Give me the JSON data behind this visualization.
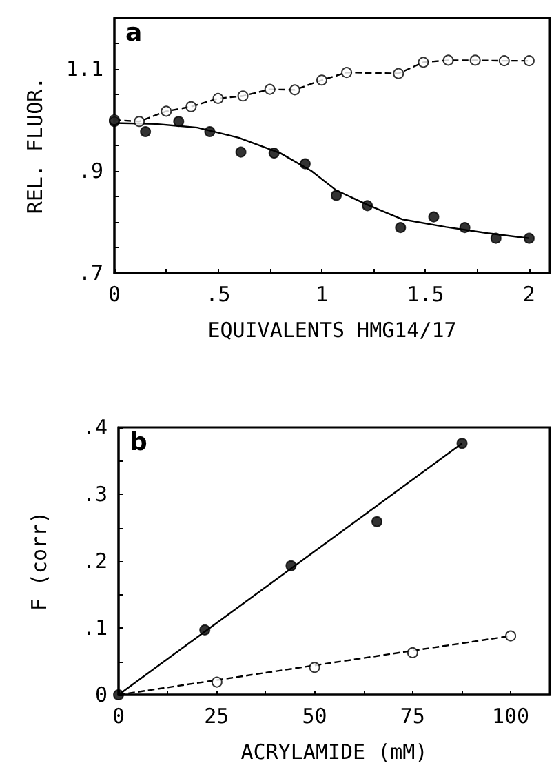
{
  "chart_data": [
    {
      "type": "scatter",
      "annotations": [
        "a"
      ],
      "xlabel": "EQUIVALENTS HMG14/17",
      "ylabel": "REL. FLUOR.",
      "xlim": [
        0,
        2.1
      ],
      "ylim": [
        0.7,
        1.2
      ],
      "xticks": [
        0,
        {
          "value": 0.25,
          "label": null
        },
        {
          "value": 0.5,
          "label": ".5"
        },
        {
          "value": 0.75,
          "label": null
        },
        1,
        {
          "value": 1.25,
          "label": null
        },
        1.5,
        {
          "value": 1.75,
          "label": null
        },
        2
      ],
      "yticks": [
        {
          "value": 0.7,
          "label": ".7"
        },
        {
          "value": 0.75,
          "label": null
        },
        {
          "value": 0.8,
          "label": null
        },
        {
          "value": 0.85,
          "label": null
        },
        {
          "value": 0.9,
          "label": ".9"
        },
        {
          "value": 0.95,
          "label": null
        },
        {
          "value": 1.0,
          "label": null
        },
        {
          "value": 1.05,
          "label": null
        },
        1.1,
        {
          "value": 1.15,
          "label": null
        }
      ],
      "grid": false,
      "series": [
        {
          "marker": "circle",
          "color": "#ffffff",
          "x": [
            0,
            0.12,
            0.25,
            0.37,
            0.5,
            0.62,
            0.75,
            0.87,
            1.0,
            1.12,
            1.37,
            1.49,
            1.61,
            1.74,
            1.88,
            2.0
          ],
          "values": [
            1.0,
            0.997,
            1.017,
            1.026,
            1.042,
            1.047,
            1.06,
            1.059,
            1.078,
            1.093,
            1.091,
            1.113,
            1.117,
            1.117,
            1.116,
            1.116
          ]
        },
        {
          "type": "line",
          "marker": "none",
          "line_style": "dashed",
          "color": "#000000",
          "x": [
            0,
            0.12,
            0.25,
            0.37,
            0.5,
            0.62,
            0.75,
            0.87,
            1.0,
            1.12,
            1.37,
            1.49,
            1.61,
            1.74,
            1.88,
            2.0
          ],
          "values": [
            1.0,
            0.997,
            1.017,
            1.026,
            1.042,
            1.047,
            1.06,
            1.059,
            1.078,
            1.093,
            1.091,
            1.113,
            1.117,
            1.117,
            1.116,
            1.116
          ]
        },
        {
          "marker": "circle",
          "color": "#000000",
          "x": [
            0,
            0.15,
            0.31,
            0.46,
            0.61,
            0.77,
            0.92,
            1.07,
            1.22,
            1.38,
            1.54,
            1.69,
            1.84,
            2.0
          ],
          "values": [
            0.997,
            0.977,
            0.997,
            0.977,
            0.937,
            0.935,
            0.914,
            0.852,
            0.832,
            0.789,
            0.81,
            0.789,
            0.768,
            0.768
          ]
        },
        {
          "type": "line",
          "marker": "none",
          "line_style": "solid",
          "color": "#000000",
          "x": [
            0,
            0.2,
            0.4,
            0.6,
            0.8,
            0.95,
            1.07,
            1.23,
            1.39,
            1.6,
            1.8,
            2.0
          ],
          "values": [
            0.994,
            0.992,
            0.985,
            0.965,
            0.935,
            0.9,
            0.862,
            0.832,
            0.805,
            0.79,
            0.778,
            0.768
          ]
        }
      ]
    },
    {
      "type": "scatter",
      "annotations": [
        "b"
      ],
      "xlabel": "ACRYLAMIDE (mM)",
      "ylabel": "F (corr)",
      "xlim": [
        0,
        110
      ],
      "ylim": [
        0,
        0.4
      ],
      "xticks": [
        0,
        {
          "value": 12.5,
          "label": null
        },
        25,
        {
          "value": 37.5,
          "label": null
        },
        50,
        {
          "value": 62.5,
          "label": null
        },
        75,
        {
          "value": 87.5,
          "label": null
        },
        100
      ],
      "yticks": [
        0,
        {
          "value": 0.05,
          "label": null
        },
        {
          "value": 0.1,
          "label": ".1"
        },
        {
          "value": 0.15,
          "label": null
        },
        {
          "value": 0.2,
          "label": ".2"
        },
        {
          "value": 0.25,
          "label": null
        },
        {
          "value": 0.3,
          "label": ".3"
        },
        {
          "value": 0.35,
          "label": null
        },
        {
          "value": 0.4,
          "label": ".4"
        }
      ],
      "grid": false,
      "series": [
        {
          "marker": "circle",
          "color": "#000000",
          "x": [
            0,
            22,
            44,
            65.9,
            87.6
          ],
          "values": [
            0,
            0.097,
            0.193,
            0.259,
            0.376
          ]
        },
        {
          "type": "line",
          "marker": "none",
          "line_style": "solid",
          "color": "#000000",
          "x": [
            0,
            87.6
          ],
          "values": [
            0,
            0.376
          ]
        },
        {
          "marker": "circle",
          "color": "#ffffff",
          "x": [
            25.1,
            50,
            75,
            100
          ],
          "values": [
            0.019,
            0.041,
            0.063,
            0.088
          ]
        },
        {
          "type": "line",
          "marker": "none",
          "line_style": "dashed",
          "color": "#000000",
          "x": [
            0,
            100
          ],
          "values": [
            0,
            0.088
          ]
        }
      ]
    }
  ]
}
